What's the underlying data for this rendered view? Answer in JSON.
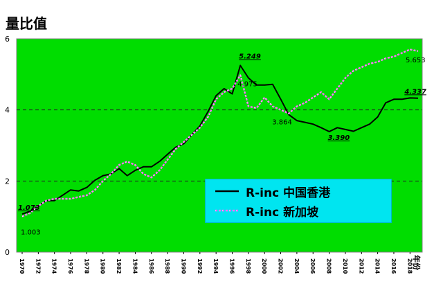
{
  "chart_data": {
    "type": "line",
    "title": "量比值",
    "xlabel": "年份",
    "ylabel": "",
    "ylim": [
      0,
      6
    ],
    "yticks": [
      "0",
      "2",
      "4",
      "6"
    ],
    "xlim": [
      1970,
      2019
    ],
    "xtick_labels": [
      "1970",
      "1972",
      "1974",
      "1976",
      "1978",
      "1980",
      "1982",
      "1984",
      "1986",
      "1988",
      "1990",
      "1992",
      "1994",
      "1996",
      "1998",
      "2000",
      "2002",
      "2004",
      "2006",
      "2008",
      "2010",
      "2012",
      "2014",
      "2016",
      "2018"
    ],
    "grid": "horizontal-dashed",
    "legend_position": "bottom-right",
    "colors": {
      "plot_bg": "#00dd00",
      "legend_bg": "#00e5f0",
      "hk": "#000000",
      "sg": "#ff66ff"
    },
    "series": [
      {
        "name": "R-inc 中国香港",
        "x": [
          1970,
          1971,
          1972,
          1973,
          1974,
          1975,
          1976,
          1977,
          1978,
          1979,
          1980,
          1981,
          1982,
          1983,
          1984,
          1985,
          1986,
          1987,
          1988,
          1989,
          1990,
          1991,
          1992,
          1993,
          1994,
          1995,
          1996,
          1997,
          1998,
          1999,
          2000,
          2001,
          2002,
          2003,
          2004,
          2005,
          2006,
          2007,
          2008,
          2009,
          2010,
          2011,
          2012,
          2013,
          2014,
          2015,
          2016,
          2017,
          2018,
          2019
        ],
        "values": [
          1.07,
          1.15,
          1.3,
          1.45,
          1.45,
          1.6,
          1.75,
          1.72,
          1.82,
          2.02,
          2.15,
          2.2,
          2.35,
          2.15,
          2.3,
          2.4,
          2.4,
          2.55,
          2.75,
          2.95,
          3.05,
          3.3,
          3.55,
          3.95,
          4.4,
          4.6,
          4.45,
          5.25,
          4.9,
          4.7,
          4.7,
          4.72,
          4.3,
          3.864,
          3.7,
          3.65,
          3.6,
          3.5,
          3.39,
          3.5,
          3.45,
          3.4,
          3.5,
          3.6,
          3.8,
          4.2,
          4.3,
          4.3,
          4.337,
          4.33
        ]
      },
      {
        "name": "R-inc 新加坡",
        "x": [
          1970,
          1971,
          1972,
          1973,
          1974,
          1975,
          1976,
          1977,
          1978,
          1979,
          1980,
          1981,
          1982,
          1983,
          1984,
          1985,
          1986,
          1987,
          1988,
          1989,
          1990,
          1991,
          1992,
          1993,
          1994,
          1995,
          1996,
          1997,
          1998,
          1999,
          2000,
          2001,
          2002,
          2003,
          2004,
          2005,
          2006,
          2007,
          2008,
          2009,
          2010,
          2011,
          2012,
          2013,
          2014,
          2015,
          2016,
          2017,
          2018,
          2019
        ],
        "values": [
          1.003,
          1.1,
          1.3,
          1.45,
          1.5,
          1.5,
          1.5,
          1.55,
          1.6,
          1.75,
          2.0,
          2.2,
          2.45,
          2.55,
          2.45,
          2.2,
          2.1,
          2.3,
          2.6,
          2.9,
          3.1,
          3.3,
          3.5,
          3.8,
          4.3,
          4.5,
          4.6,
          4.975,
          4.1,
          4.05,
          4.35,
          4.1,
          4.0,
          3.9,
          4.1,
          4.2,
          4.35,
          4.5,
          4.3,
          4.6,
          4.9,
          5.1,
          5.2,
          5.3,
          5.35,
          5.45,
          5.5,
          5.6,
          5.7,
          5.653
        ]
      }
    ],
    "annotations": [
      {
        "text": "1.073",
        "x": 1970,
        "y": 1.073,
        "series": 0,
        "style": "bold",
        "dx": -6,
        "dy": -6
      },
      {
        "text": "1.003",
        "x": 1970,
        "y": 1.003,
        "series": 1,
        "style": "plain",
        "dx": -2,
        "dy": 26
      },
      {
        "text": "5.249",
        "x": 1997,
        "y": 5.249,
        "series": 0,
        "style": "bold",
        "dx": -2,
        "dy": -10
      },
      {
        "text": "4.975",
        "x": 1997,
        "y": 4.975,
        "series": 1,
        "style": "plain",
        "dx": -4,
        "dy": 16
      },
      {
        "text": "3.864",
        "x": 2003,
        "y": 3.864,
        "series": 0,
        "style": "plain",
        "dx": -24,
        "dy": 14
      },
      {
        "text": "3.390",
        "x": 2008,
        "y": 3.39,
        "series": 0,
        "style": "bold",
        "dx": -2,
        "dy": 12
      },
      {
        "text": "4.337",
        "x": 2018,
        "y": 4.337,
        "series": 0,
        "style": "bold",
        "dx": -8,
        "dy": -6
      },
      {
        "text": "5.653",
        "x": 2019,
        "y": 5.653,
        "series": 1,
        "style": "plain",
        "dx": -18,
        "dy": 16
      }
    ]
  },
  "legend": {
    "items": [
      {
        "label": "R-inc 中国香港"
      },
      {
        "label": "R-inc 新加坡"
      }
    ]
  }
}
